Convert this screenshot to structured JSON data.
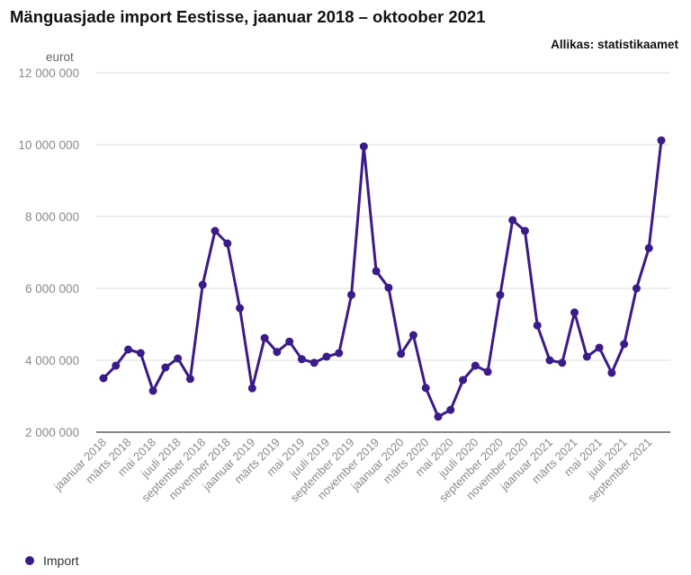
{
  "title": "Mänguasjade import Eestisse, jaanuar 2018 – oktoober 2021",
  "source": "Allikas: statistikaamet",
  "chart_data": {
    "type": "line",
    "title": "Mänguasjade import Eestisse, jaanuar 2018 – oktoober 2021",
    "ylabel": "eurot",
    "ylim": [
      2000000,
      12000000
    ],
    "yticks": [
      2000000,
      4000000,
      6000000,
      8000000,
      10000000,
      12000000
    ],
    "ytick_labels": [
      "2 000 000",
      "4 000 000",
      "6 000 000",
      "8 000 000",
      "10 000 000",
      "12 000 000"
    ],
    "grid": true,
    "legend_position": "bottom-left",
    "x_tick_labels": [
      "jaanuar 2018",
      "märts 2018",
      "mai 2018",
      "juuli 2018",
      "september 2018",
      "november 2018",
      "jaanuar 2019",
      "märts 2019",
      "mai 2019",
      "juuli 2019",
      "september 2019",
      "november 2019",
      "jaanuar 2020",
      "märts 2020",
      "mai 2020",
      "juuli 2020",
      "september 2020",
      "november 2020",
      "jaanuar 2021",
      "märts 2021",
      "mai 2021",
      "juuli 2021",
      "september 2021"
    ],
    "series": [
      {
        "name": "Import",
        "color": "#3b1a8a",
        "values": [
          3500000,
          3850000,
          4300000,
          4200000,
          3150000,
          3800000,
          4050000,
          3480000,
          6100000,
          7600000,
          7250000,
          5450000,
          3220000,
          4620000,
          4230000,
          4520000,
          4030000,
          3930000,
          4100000,
          4200000,
          5820000,
          9950000,
          6480000,
          6020000,
          4180000,
          4700000,
          3230000,
          2430000,
          2620000,
          3450000,
          3850000,
          3680000,
          5820000,
          7900000,
          7600000,
          4970000,
          4000000,
          3930000,
          5330000,
          4100000,
          4350000,
          3650000,
          4450000,
          6000000,
          7120000,
          10120000
        ]
      }
    ]
  }
}
